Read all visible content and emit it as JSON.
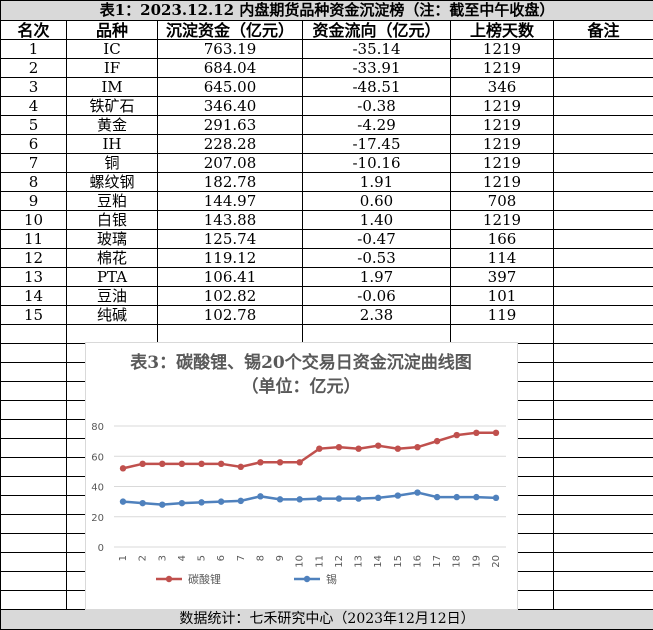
{
  "title": "表1：2023.12.12 内盘期货品种资金沉淀榜（注：截至中午收盘）",
  "table": {
    "columns": [
      "名次",
      "品种",
      "沉淀资金（亿元）",
      "资金流向（亿元）",
      "上榜天数",
      "备注"
    ],
    "rows": [
      [
        "1",
        "IC",
        "763.19",
        "-35.14",
        "1219"
      ],
      [
        "2",
        "IF",
        "684.04",
        "-33.91",
        "1219"
      ],
      [
        "3",
        "IM",
        "645.00",
        "-48.51",
        "346"
      ],
      [
        "4",
        "铁矿石",
        "346.40",
        "-0.38",
        "1219"
      ],
      [
        "5",
        "黄金",
        "291.63",
        "-4.29",
        "1219"
      ],
      [
        "6",
        "IH",
        "228.28",
        "-17.45",
        "1219"
      ],
      [
        "7",
        "铜",
        "207.08",
        "-10.16",
        "1219"
      ],
      [
        "8",
        "螺纹钢",
        "182.78",
        "1.91",
        "1219"
      ],
      [
        "9",
        "豆粕",
        "144.97",
        "0.60",
        "708"
      ],
      [
        "10",
        "白银",
        "143.88",
        "1.40",
        "1219"
      ],
      [
        "11",
        "玻璃",
        "125.74",
        "-0.47",
        "166"
      ],
      [
        "12",
        "棉花",
        "119.12",
        "-0.53",
        "114"
      ],
      [
        "13",
        "PTA",
        "106.41",
        "1.97",
        "397"
      ],
      [
        "14",
        "豆油",
        "102.82",
        "-0.06",
        "101"
      ],
      [
        "15",
        "纯碱",
        "102.78",
        "2.38",
        "119"
      ]
    ]
  },
  "chart_data": {
    "type": "line",
    "title": "表3：碳酸锂、锡20个交易日资金沉淀曲线图（单位：亿元）",
    "categories": [
      "1",
      "2",
      "3",
      "4",
      "5",
      "6",
      "7",
      "8",
      "9",
      "10",
      "11",
      "12",
      "13",
      "14",
      "15",
      "16",
      "17",
      "18",
      "19",
      "20"
    ],
    "series": [
      {
        "name": "碳酸锂",
        "color": "#c0504d",
        "values": [
          52,
          55,
          55,
          55,
          55,
          55,
          53,
          56,
          56,
          56,
          65,
          66,
          65,
          67,
          65,
          66,
          70,
          74,
          75.5,
          75.5
        ]
      },
      {
        "name": "锡",
        "color": "#4f81bd",
        "values": [
          30,
          29,
          28,
          29,
          29.5,
          30,
          30.5,
          33.5,
          31.5,
          31.5,
          32,
          32,
          32,
          32.5,
          34,
          36,
          33,
          33,
          33,
          32.5
        ]
      }
    ],
    "ylim": [
      0,
      80
    ],
    "yticks": [
      0,
      20,
      40,
      60,
      80
    ],
    "grid": true,
    "legend": "bottom"
  },
  "footer": "数据统计：七禾研究中心（2023年12月12日）"
}
